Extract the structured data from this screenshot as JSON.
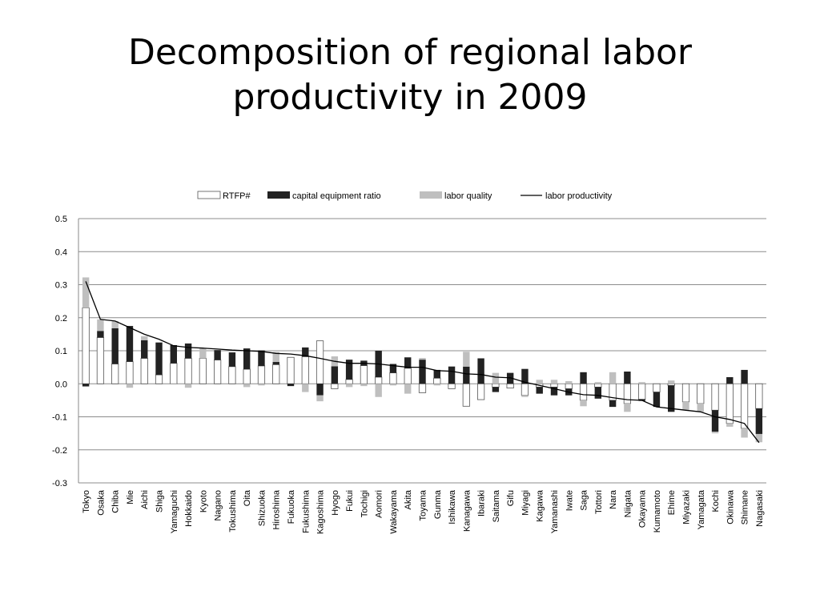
{
  "title": "Decomposition of regional labor productivity in 2009",
  "chart_data": {
    "type": "bar",
    "stacked": true,
    "title": "Decomposition of regional labor productivity in 2009",
    "xlabel": "",
    "ylabel": "",
    "ylim": [
      -0.3,
      0.5
    ],
    "yticks": [
      "0.5",
      "0.4",
      "0.3",
      "0.2",
      "0.1",
      "0.0",
      "-0.1",
      "-0.2",
      "-0.3"
    ],
    "grid": true,
    "legend_position": "top",
    "categories": [
      "Tokyo",
      "Osaka",
      "Chiba",
      "Mie",
      "Aichi",
      "Shiga",
      "Yamaguchi",
      "Hokkaido",
      "Kyoto",
      "Nagano",
      "Tokushima",
      "Oita",
      "Shizuoka",
      "Hiroshima",
      "Fukuoka",
      "Fukushima",
      "Kagoshima",
      "Hyogo",
      "Fukui",
      "Tochigi",
      "Aomori",
      "Wakayama",
      "Akita",
      "Toyama",
      "Gunma",
      "Ishikawa",
      "Kanagawa",
      "Ibaraki",
      "Saitama",
      "Gifu",
      "Miyagi",
      "Kagawa",
      "Yamanashi",
      "Iwate",
      "Saga",
      "Tottori",
      "Nara",
      "Niigata",
      "Okayama",
      "Kumamoto",
      "Ehime",
      "Miyazaki",
      "Yamagata",
      "Kochi",
      "Okinawa",
      "Shimane",
      "Nagasaki"
    ],
    "series": [
      {
        "name": "RTFP#",
        "kind": "bar",
        "color": "#ffffff",
        "values": [
          0.23,
          0.14,
          0.06,
          0.067,
          0.077,
          0.027,
          0.062,
          0.077,
          0.077,
          0.072,
          0.052,
          0.044,
          0.054,
          0.058,
          0.08,
          0.082,
          0.13,
          -0.015,
          0.013,
          0.055,
          0.02,
          0.033,
          0.047,
          -0.027,
          0.017,
          -0.015,
          -0.068,
          -0.048,
          -0.01,
          -0.013,
          -0.035,
          -0.01,
          -0.01,
          -0.015,
          -0.05,
          -0.01,
          -0.05,
          -0.06,
          -0.047,
          -0.025,
          -0.005,
          -0.055,
          -0.06,
          -0.08,
          -0.12,
          -0.135,
          -0.075
        ]
      },
      {
        "name": "capital equipment ratio",
        "kind": "bar",
        "color": "#222222",
        "values": [
          -0.008,
          0.02,
          0.108,
          0.108,
          0.055,
          0.098,
          0.055,
          0.045,
          0.0,
          0.03,
          0.043,
          0.063,
          0.047,
          0.008,
          -0.007,
          0.028,
          -0.035,
          0.053,
          0.06,
          0.015,
          0.08,
          0.027,
          0.033,
          0.073,
          0.025,
          0.052,
          0.052,
          0.077,
          -0.015,
          0.033,
          0.045,
          -0.02,
          -0.025,
          -0.02,
          0.035,
          -0.035,
          -0.02,
          0.037,
          -0.005,
          -0.045,
          -0.08,
          0.0,
          0.0,
          -0.065,
          0.02,
          0.042,
          -0.077
        ]
      },
      {
        "name": "labor quality",
        "kind": "bar",
        "color": "#bfbfbf",
        "values": [
          0.092,
          0.035,
          0.022,
          -0.012,
          0.012,
          0.0,
          -0.002,
          -0.012,
          0.03,
          0.0,
          0.0,
          -0.01,
          -0.005,
          0.03,
          0.0,
          -0.025,
          -0.018,
          0.03,
          -0.01,
          -0.007,
          -0.04,
          -0.005,
          -0.03,
          0.005,
          -0.005,
          0.002,
          0.045,
          0.0,
          0.033,
          0.0,
          -0.005,
          0.012,
          0.012,
          0.008,
          -0.018,
          0.005,
          0.035,
          -0.025,
          0.005,
          0.0,
          0.01,
          -0.025,
          -0.025,
          -0.005,
          -0.01,
          -0.028,
          -0.025
        ]
      },
      {
        "name": "labor productivity",
        "kind": "line",
        "color": "#000000",
        "values": [
          0.31,
          0.195,
          0.19,
          0.17,
          0.15,
          0.135,
          0.115,
          0.11,
          0.108,
          0.105,
          0.102,
          0.1,
          0.098,
          0.092,
          0.09,
          0.085,
          0.077,
          0.068,
          0.062,
          0.062,
          0.06,
          0.055,
          0.05,
          0.05,
          0.04,
          0.038,
          0.03,
          0.028,
          0.02,
          0.018,
          0.005,
          -0.005,
          -0.015,
          -0.025,
          -0.033,
          -0.035,
          -0.042,
          -0.048,
          -0.05,
          -0.07,
          -0.075,
          -0.08,
          -0.085,
          -0.1,
          -0.108,
          -0.12,
          -0.178
        ]
      }
    ]
  }
}
